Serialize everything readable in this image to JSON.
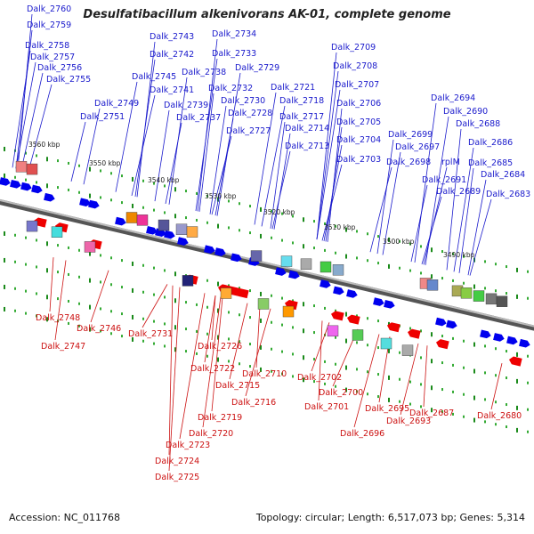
{
  "title": "Desulfatibacillum alkenivorans AK-01, complete genome",
  "footer": {
    "accession": "Accession: NC_011768",
    "topology": "Topology: circular; Length: 6,517,073 bp; Genes: 5,314"
  },
  "scale_labels": [
    "3560 kbp",
    "3550 kbp",
    "3540 kbp",
    "3530 kbp",
    "3520 kbp",
    "3510 kbp",
    "3500 kbp",
    "3490 kbp"
  ],
  "top_labels": [
    "Dalk_2760",
    "Dalk_2759",
    "Dalk_2758",
    "Dalk_2757",
    "Dalk_2756",
    "Dalk_2755",
    "Dalk_2751",
    "Dalk_2749",
    "Dalk_2743",
    "Dalk_2742",
    "Dalk_2745",
    "Dalk_2741",
    "Dalk_2739",
    "Dalk_2737",
    "Dalk_2738",
    "Dalk_2734",
    "Dalk_2733",
    "Dalk_2729",
    "Dalk_2732",
    "Dalk_2730",
    "Dalk_2728",
    "Dalk_2727",
    "Dalk_2721",
    "Dalk_2718",
    "Dalk_2717",
    "Dalk_2714",
    "Dalk_2713",
    "Dalk_2709",
    "Dalk_2708",
    "Dalk_2707",
    "Dalk_2706",
    "Dalk_2705",
    "Dalk_2704",
    "Dalk_2703",
    "Dalk_2694",
    "Dalk_2690",
    "Dalk_2688",
    "Dalk_2699",
    "Dalk_2697",
    "Dalk_2686",
    "Dalk_2698",
    "rplM",
    "Dalk_2685",
    "Dalk_2691",
    "Dalk_2684",
    "Dalk_2689",
    "Dalk_2683"
  ],
  "bottom_labels": [
    "Dalk_2748",
    "Dalk_2747",
    "Dalk_2746",
    "Dalk_2731",
    "Dalk_2726",
    "Dalk_2722",
    "Dalk_2715",
    "Dalk_2716",
    "Dalk_2710",
    "Dalk_2719",
    "Dalk_2720",
    "Dalk_2723",
    "Dalk_2724",
    "Dalk_2725",
    "Dalk_2702",
    "Dalk_2700",
    "Dalk_2701",
    "Dalk_2695",
    "Dalk_2693",
    "Dalk_2696",
    "Dalk_2687",
    "Dalk_2680"
  ],
  "colors": {
    "forward_strand": "#0000ee",
    "reverse_strand": "#ee0000",
    "top_label": "#1a1acc",
    "bottom_label": "#cc1111",
    "backbone": "#777777",
    "tick": "#22aa22"
  }
}
